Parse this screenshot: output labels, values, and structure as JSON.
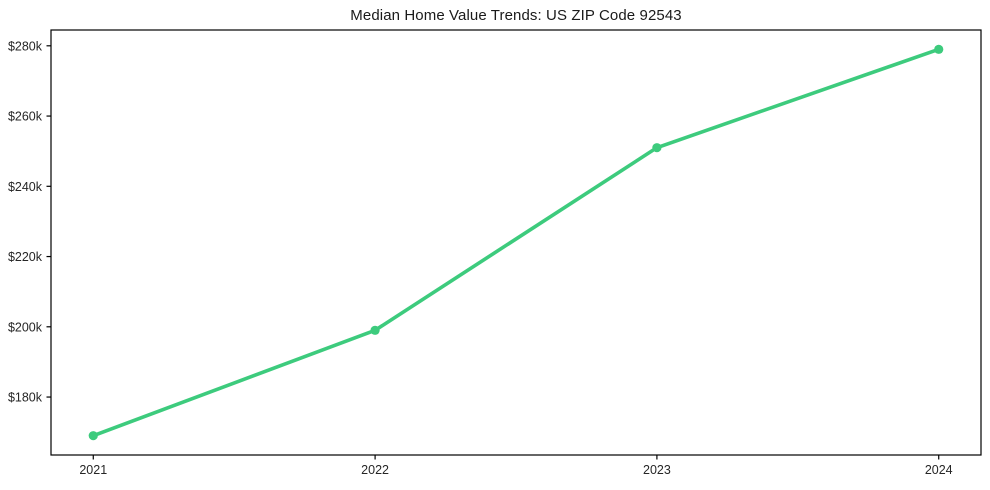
{
  "chart_data": {
    "type": "line",
    "title": "Median Home Value Trends: US ZIP Code 92543",
    "categories": [
      "2021",
      "2022",
      "2023",
      "2024"
    ],
    "values": [
      169000,
      199000,
      251000,
      279000
    ],
    "y_ticks": [
      180000,
      200000,
      220000,
      240000,
      260000,
      280000
    ],
    "y_tick_labels": [
      "$180k",
      "$200k",
      "$220k",
      "$240k",
      "$260k",
      "$280k"
    ],
    "xlim": [
      2020.85,
      2024.15
    ],
    "ylim": [
      163500,
      284500
    ],
    "grid": false,
    "legend": "none",
    "line_color": "#3dcb7d",
    "marker": "circle",
    "spine_color": "#000000",
    "tick_label_color": "#262626",
    "background_color": "#ffffff"
  }
}
